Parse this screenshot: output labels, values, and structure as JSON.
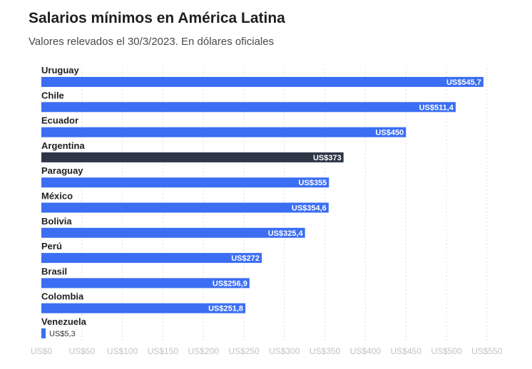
{
  "header": {
    "title": "Salarios mínimos en América Latina",
    "subtitle": "Valores relevados el 30/3/2023. En dólares oficiales"
  },
  "colors": {
    "bar_default": "#3b6ef2",
    "bar_highlight": "#2e3648"
  },
  "chart_data": {
    "type": "bar",
    "orientation": "horizontal",
    "title": "Salarios mínimos en América Latina",
    "subtitle": "Valores relevados el 30/3/2023. En dólares oficiales",
    "categories": [
      "Uruguay",
      "Chile",
      "Ecuador",
      "Argentina",
      "Paraguay",
      "México",
      "Bolivia",
      "Perú",
      "Brasil",
      "Colombia",
      "Venezuela"
    ],
    "values": [
      545.7,
      511.4,
      450,
      373,
      355,
      354.6,
      325.4,
      272,
      256.9,
      251.8,
      5.3
    ],
    "value_labels": [
      "US$545,7",
      "US$511,4",
      "US$450",
      "US$373",
      "US$355",
      "US$354,6",
      "US$325,4",
      "US$272",
      "US$256,9",
      "US$251,8",
      "US$5,3"
    ],
    "highlight": "Argentina",
    "xlim": [
      0,
      550
    ],
    "xticks": [
      0,
      50,
      100,
      150,
      200,
      250,
      300,
      350,
      400,
      450,
      500,
      550
    ],
    "xtick_labels": [
      "US$0",
      "US$50",
      "US$100",
      "US$150",
      "US$200",
      "US$250",
      "US$300",
      "US$350",
      "US$400",
      "US$450",
      "US$500",
      "US$550"
    ],
    "xlabel": "",
    "ylabel": "",
    "grid": true
  }
}
